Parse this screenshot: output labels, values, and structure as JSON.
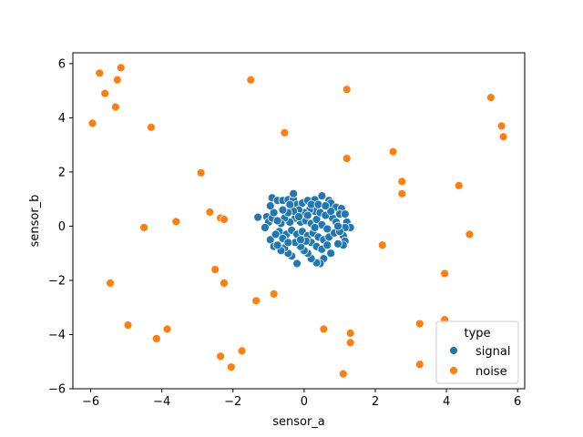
{
  "chart_data": {
    "type": "scatter",
    "xlabel": "sensor_a",
    "ylabel": "sensor_b",
    "xlim": [
      -6.5,
      6.2
    ],
    "ylim": [
      -6,
      6.4
    ],
    "xticks": [
      -6,
      -4,
      -2,
      0,
      2,
      4,
      6
    ],
    "yticks": [
      -6,
      -4,
      -2,
      0,
      2,
      4,
      6
    ],
    "grid": false,
    "legend": {
      "title": "type",
      "placement": "lower-right",
      "entries": [
        "signal",
        "noise"
      ]
    },
    "colors": {
      "signal": "#1f77b4",
      "noise": "#ff7f0e"
    },
    "series": [
      {
        "name": "signal",
        "points": [
          [
            -1.05,
            0.35
          ],
          [
            -1.0,
            0.15
          ],
          [
            -0.9,
            0.3
          ],
          [
            -1.1,
            -0.05
          ],
          [
            -0.95,
            -0.5
          ],
          [
            -0.85,
            -0.75
          ],
          [
            -1.3,
            0.33
          ],
          [
            -0.9,
            1.05
          ],
          [
            -0.75,
            0.95
          ],
          [
            -0.6,
            0.95
          ],
          [
            -0.45,
            0.98
          ],
          [
            -0.3,
            1.0
          ],
          [
            -0.3,
            1.2
          ],
          [
            -0.2,
            0.8
          ],
          [
            -0.05,
            0.85
          ],
          [
            0.1,
            0.95
          ],
          [
            0.3,
            0.98
          ],
          [
            0.5,
            1.12
          ],
          [
            0.7,
            0.95
          ],
          [
            0.75,
            0.85
          ],
          [
            0.9,
            0.7
          ],
          [
            1.05,
            0.65
          ],
          [
            1.0,
            0.45
          ],
          [
            1.15,
            0.45
          ],
          [
            1.2,
            0.15
          ],
          [
            1.3,
            -0.05
          ],
          [
            1.15,
            -0.05
          ],
          [
            1.1,
            -0.35
          ],
          [
            1.15,
            -0.55
          ],
          [
            1.1,
            -0.7
          ],
          [
            0.95,
            -0.65
          ],
          [
            0.75,
            -1.0
          ],
          [
            0.55,
            -1.2
          ],
          [
            0.45,
            -1.38
          ],
          [
            0.35,
            -1.35
          ],
          [
            0.2,
            -1.2
          ],
          [
            0.1,
            -1.0
          ],
          [
            0.0,
            -0.9
          ],
          [
            -0.1,
            -0.75
          ],
          [
            -0.25,
            -0.6
          ],
          [
            -0.35,
            -1.1
          ],
          [
            -0.45,
            -1.0
          ],
          [
            -0.55,
            -0.8
          ],
          [
            -0.65,
            -0.9
          ],
          [
            -0.75,
            -0.7
          ],
          [
            -0.2,
            -1.38
          ],
          [
            -0.1,
            0.15
          ],
          [
            0.05,
            0.2
          ],
          [
            0.2,
            0.1
          ],
          [
            0.35,
            0.25
          ],
          [
            0.5,
            0.05
          ],
          [
            0.65,
            -0.1
          ],
          [
            0.8,
            0.3
          ],
          [
            -0.25,
            0.3
          ],
          [
            -0.4,
            0.15
          ],
          [
            -0.55,
            0.3
          ],
          [
            -0.65,
            0.1
          ],
          [
            -0.7,
            -0.2
          ],
          [
            -0.5,
            -0.3
          ],
          [
            -0.35,
            -0.15
          ],
          [
            -0.2,
            -0.3
          ],
          [
            -0.05,
            -0.2
          ],
          [
            0.1,
            -0.35
          ],
          [
            0.25,
            -0.25
          ],
          [
            0.4,
            -0.4
          ],
          [
            0.55,
            -0.5
          ],
          [
            0.7,
            -0.4
          ],
          [
            0.85,
            -0.25
          ],
          [
            0.3,
            0.55
          ],
          [
            0.15,
            0.6
          ],
          [
            0.0,
            0.5
          ],
          [
            -0.15,
            0.6
          ],
          [
            -0.3,
            0.55
          ],
          [
            -0.45,
            0.5
          ],
          [
            -0.6,
            0.6
          ],
          [
            0.45,
            0.5
          ],
          [
            0.6,
            0.4
          ],
          [
            0.75,
            0.55
          ],
          [
            0.9,
            0.15
          ],
          [
            1.0,
            -0.2
          ],
          [
            0.95,
            0.0
          ],
          [
            0.2,
            -0.6
          ],
          [
            0.05,
            -0.55
          ],
          [
            -0.1,
            -0.5
          ],
          [
            0.35,
            -0.75
          ],
          [
            0.5,
            -0.85
          ],
          [
            0.65,
            -0.7
          ],
          [
            -0.85,
            0.5
          ],
          [
            -0.95,
            0.75
          ],
          [
            -0.75,
            0.2
          ],
          [
            -0.6,
            -0.45
          ],
          [
            -0.8,
            -0.3
          ],
          [
            -0.4,
            0.8
          ],
          [
            0.2,
            0.8
          ],
          [
            0.4,
            0.8
          ],
          [
            0.6,
            0.75
          ],
          [
            -0.15,
            0.35
          ],
          [
            0.1,
            0.4
          ],
          [
            0.3,
            -0.05
          ],
          [
            -0.45,
            -0.6
          ]
        ]
      },
      {
        "name": "noise",
        "points": [
          [
            -5.75,
            5.65
          ],
          [
            -5.15,
            5.85
          ],
          [
            -5.6,
            4.9
          ],
          [
            -5.25,
            5.4
          ],
          [
            -5.3,
            4.4
          ],
          [
            -5.95,
            3.8
          ],
          [
            -4.3,
            3.65
          ],
          [
            -2.9,
            1.97
          ],
          [
            -1.5,
            5.4
          ],
          [
            -0.55,
            3.45
          ],
          [
            1.2,
            5.05
          ],
          [
            5.25,
            4.75
          ],
          [
            5.55,
            3.7
          ],
          [
            5.6,
            3.3
          ],
          [
            2.5,
            2.75
          ],
          [
            1.2,
            2.5
          ],
          [
            2.75,
            1.65
          ],
          [
            2.75,
            1.2
          ],
          [
            4.35,
            1.5
          ],
          [
            4.65,
            -0.3
          ],
          [
            2.2,
            -0.7
          ],
          [
            -2.65,
            0.52
          ],
          [
            -2.35,
            0.3
          ],
          [
            -2.25,
            0.25
          ],
          [
            -3.6,
            0.17
          ],
          [
            -4.5,
            -0.05
          ],
          [
            -5.45,
            -2.1
          ],
          [
            -2.5,
            -1.6
          ],
          [
            -2.25,
            -2.1
          ],
          [
            -1.35,
            -2.75
          ],
          [
            -0.85,
            -2.5
          ],
          [
            -4.95,
            -3.65
          ],
          [
            -3.85,
            -3.8
          ],
          [
            -4.15,
            -4.15
          ],
          [
            -2.35,
            -4.8
          ],
          [
            -1.75,
            -4.6
          ],
          [
            -2.05,
            -5.2
          ],
          [
            0.55,
            -3.8
          ],
          [
            1.3,
            -3.95
          ],
          [
            1.3,
            -4.3
          ],
          [
            1.1,
            -5.45
          ],
          [
            3.25,
            -3.6
          ],
          [
            3.25,
            -5.1
          ],
          [
            3.95,
            -3.45
          ],
          [
            3.95,
            -1.75
          ]
        ]
      }
    ]
  }
}
